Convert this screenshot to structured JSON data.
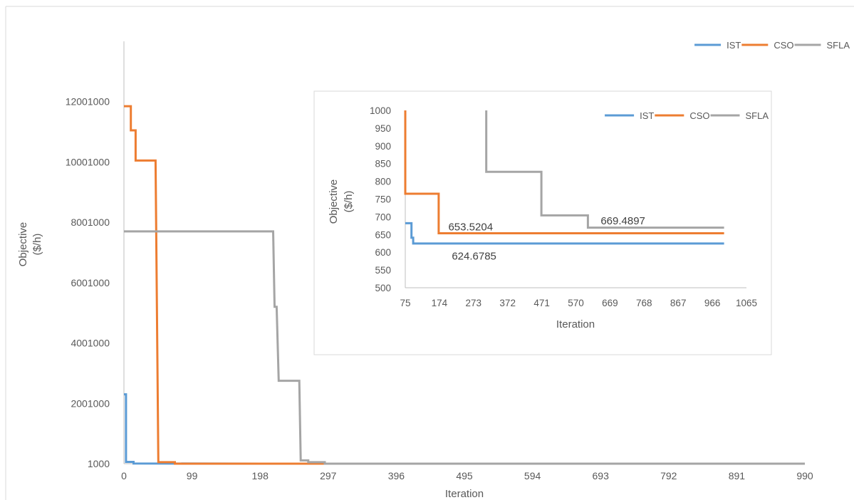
{
  "chart_data": [
    {
      "type": "line",
      "title": "",
      "xlabel": "Iteration",
      "ylabel_lines": [
        "Objective",
        "($/h)"
      ],
      "x_ticks": [
        "0",
        "99",
        "198",
        "297",
        "396",
        "495",
        "594",
        "693",
        "792",
        "891",
        "990"
      ],
      "y_ticks": [
        "1000",
        "2001000",
        "4001000",
        "6001000",
        "8001000",
        "10001000",
        "12001000"
      ],
      "xlim": [
        0,
        990
      ],
      "ylim": [
        1000,
        14001000
      ],
      "grid": false,
      "legend_position": "top-right",
      "series": [
        {
          "name": "IST",
          "color": "#5b9bd5",
          "points": [
            [
              0,
              2300000
            ],
            [
              3,
              2300000
            ],
            [
              3,
              60000
            ],
            [
              14,
              60000
            ],
            [
              14,
              8000
            ],
            [
              200,
              1000
            ],
            [
              990,
              1000
            ]
          ]
        },
        {
          "name": "CSO",
          "color": "#ed7d31",
          "points": [
            [
              0,
              11850000
            ],
            [
              10,
              11850000
            ],
            [
              10,
              11050000
            ],
            [
              17,
              11050000
            ],
            [
              17,
              10050000
            ],
            [
              46,
              10050000
            ],
            [
              50,
              50000
            ],
            [
              74,
              50000
            ],
            [
              74,
              1000
            ],
            [
              990,
              1000
            ]
          ]
        },
        {
          "name": "SFLA",
          "color": "#a5a5a5",
          "points": [
            [
              0,
              7700000
            ],
            [
              217,
              7700000
            ],
            [
              219,
              5200000
            ],
            [
              222,
              5200000
            ],
            [
              225,
              2750000
            ],
            [
              255,
              2750000
            ],
            [
              257,
              110000
            ],
            [
              268,
              110000
            ],
            [
              268,
              50000
            ],
            [
              292,
              50000
            ],
            [
              292,
              1000
            ],
            [
              990,
              1000
            ]
          ]
        }
      ]
    },
    {
      "type": "line",
      "title": "",
      "xlabel": "Iteration",
      "ylabel_lines": [
        "Objective",
        "($/h)"
      ],
      "x_ticks": [
        "75",
        "174",
        "273",
        "372",
        "471",
        "570",
        "669",
        "768",
        "867",
        "966",
        "1065"
      ],
      "y_ticks": [
        "500",
        "550",
        "600",
        "650",
        "700",
        "750",
        "800",
        "850",
        "900",
        "950",
        "1000"
      ],
      "xlim": [
        75,
        1065
      ],
      "ylim": [
        500,
        1000
      ],
      "grid": false,
      "legend_position": "top-right",
      "annotations": [
        {
          "text": "653.5204",
          "x": 200,
          "y": 672
        },
        {
          "text": "624.6785",
          "x": 210,
          "y": 589
        },
        {
          "text": "669.4897",
          "x": 642,
          "y": 689
        }
      ],
      "series": [
        {
          "name": "IST",
          "color": "#5b9bd5",
          "points": [
            [
              75,
              682
            ],
            [
              93,
              682
            ],
            [
              93,
              641
            ],
            [
              98,
              641
            ],
            [
              98,
              624.6785
            ],
            [
              1000,
              624.6785
            ]
          ]
        },
        {
          "name": "CSO",
          "color": "#ed7d31",
          "points": [
            [
              75,
              1000
            ],
            [
              75,
              765
            ],
            [
              172,
              765
            ],
            [
              172,
              653.5204
            ],
            [
              1000,
              653.5204
            ]
          ]
        },
        {
          "name": "SFLA",
          "color": "#a5a5a5",
          "points": [
            [
              310,
              1000
            ],
            [
              310,
              827
            ],
            [
              470,
              827
            ],
            [
              470,
              704
            ],
            [
              605,
              704
            ],
            [
              605,
              669.4897
            ],
            [
              1000,
              669.4897
            ]
          ]
        }
      ]
    }
  ]
}
